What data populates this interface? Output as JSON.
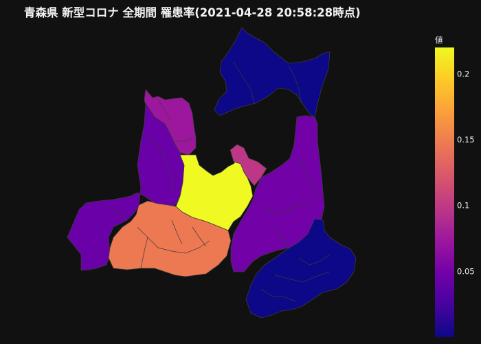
{
  "title": "青森県 新型コロナ 全期間 罹患率(2021-04-28 20:58:28時点)",
  "colorbar": {
    "title": "値",
    "min": 0.0,
    "max": 0.22,
    "ticks": [
      {
        "value": 0.05,
        "label": "0.05"
      },
      {
        "value": 0.1,
        "label": "0.1"
      },
      {
        "value": 0.15,
        "label": "0.15"
      },
      {
        "value": 0.2,
        "label": "0.2"
      }
    ],
    "colorscale": [
      "#0d0887",
      "#46039f",
      "#7201a8",
      "#9c179e",
      "#bd3786",
      "#d8576b",
      "#ed7953",
      "#fb9f3a",
      "#fdca26",
      "#f0f921"
    ]
  },
  "background": "#111111",
  "border_color": "#3a3a3a"
}
